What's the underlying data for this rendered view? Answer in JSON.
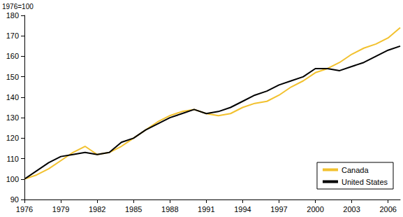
{
  "chart_data": {
    "type": "line",
    "ylabel": "1976=100",
    "x": [
      1976,
      1977,
      1978,
      1979,
      1980,
      1981,
      1982,
      1983,
      1984,
      1985,
      1986,
      1987,
      1988,
      1989,
      1990,
      1991,
      1992,
      1993,
      1994,
      1995,
      1996,
      1997,
      1998,
      1999,
      2000,
      2001,
      2002,
      2003,
      2004,
      2005,
      2006,
      2007
    ],
    "series": [
      {
        "name": "Canada",
        "color": "#f2c12e",
        "values": [
          100,
          102,
          105,
          109,
          113,
          116,
          112,
          113,
          116,
          120,
          124,
          128,
          131,
          133,
          134,
          132,
          131,
          132,
          135,
          137,
          138,
          141,
          145,
          148,
          152,
          154,
          157,
          161,
          164,
          166,
          169,
          174
        ]
      },
      {
        "name": "United States",
        "color": "#000000",
        "values": [
          100,
          104,
          108,
          111,
          112,
          113,
          112,
          113,
          118,
          120,
          124,
          127,
          130,
          132,
          134,
          132,
          133,
          135,
          138,
          141,
          143,
          146,
          148,
          150,
          154,
          154,
          153,
          155,
          157,
          160,
          163,
          165
        ]
      }
    ],
    "xlim": [
      1976,
      2007
    ],
    "xticks": [
      1976,
      1979,
      1982,
      1985,
      1988,
      1991,
      1994,
      1997,
      2000,
      2003,
      2006
    ],
    "ylim": [
      90,
      180
    ],
    "yticks": [
      90,
      100,
      110,
      120,
      130,
      140,
      150,
      160,
      170,
      180
    ],
    "grid": false,
    "legend": "bottom-right"
  }
}
